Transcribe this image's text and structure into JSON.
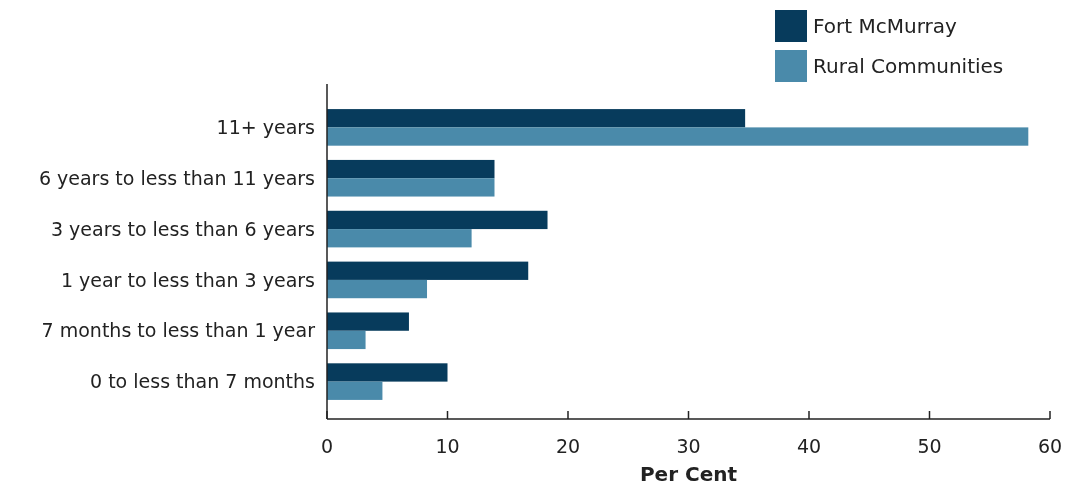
{
  "chart_data": {
    "type": "bar",
    "orientation": "horizontal",
    "xlabel": "Per Cent",
    "categories": [
      "11+ years",
      "6 years to less than 11 years",
      "3 years to less than 6 years",
      "1 year to less than 3 years",
      "7 months to less than 1 year",
      "0 to less than 7 months"
    ],
    "series": [
      {
        "name": "Fort McMurray",
        "color": "#073b5c",
        "values": [
          34.7,
          13.9,
          18.3,
          16.7,
          6.8,
          10.0
        ]
      },
      {
        "name": "Rural Communities",
        "color": "#4a8aaa",
        "values": [
          58.2,
          13.9,
          12.0,
          8.3,
          3.2,
          4.6
        ]
      }
    ],
    "xlim": [
      0,
      60
    ],
    "xticks": [
      0,
      10,
      20,
      30,
      40,
      50,
      60
    ],
    "grid": false,
    "legend": "top right"
  }
}
